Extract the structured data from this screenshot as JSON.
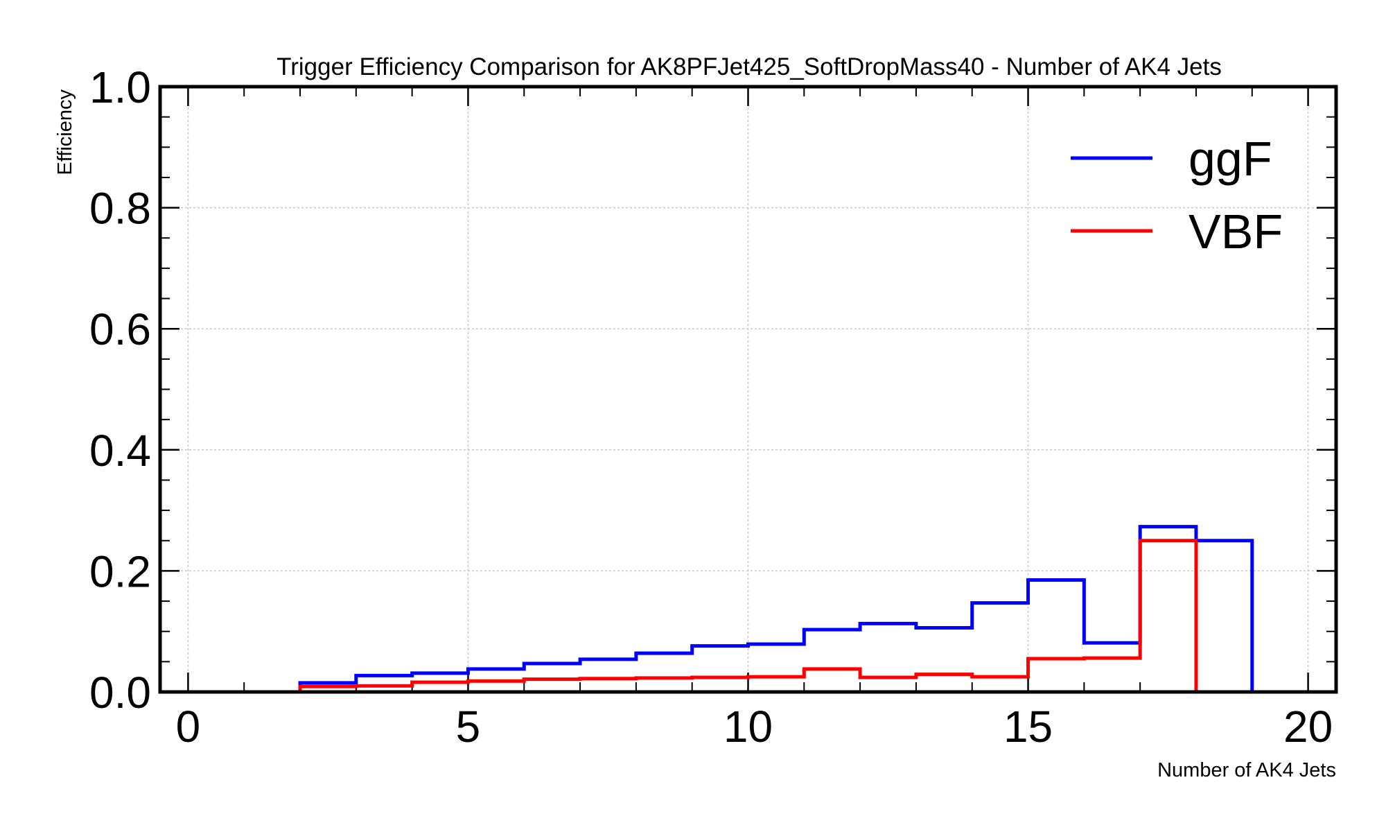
{
  "chart_data": {
    "type": "step",
    "title": "Trigger Efficiency Comparison for AK8PFJet425_SoftDropMass40 - Number of AK4 Jets",
    "xlabel": "Number of AK4 Jets",
    "ylabel": "Efficiency",
    "xlim": [
      -0.5,
      20.5
    ],
    "ylim": [
      0.0,
      1.0
    ],
    "xticks": [
      0,
      5,
      10,
      15,
      20
    ],
    "xtick_labels": [
      "0",
      "5",
      "10",
      "15",
      "20"
    ],
    "yticks": [
      0.0,
      0.2,
      0.4,
      0.6,
      0.8,
      1.0
    ],
    "ytick_labels": [
      "0.0",
      "0.2",
      "0.4",
      "0.6",
      "0.8",
      "1.0"
    ],
    "grid": true,
    "legend_position": "top-right",
    "bin_edges": [
      0,
      1,
      2,
      3,
      4,
      5,
      6,
      7,
      8,
      9,
      10,
      11,
      12,
      13,
      14,
      15,
      16,
      17,
      18,
      19,
      20
    ],
    "series": [
      {
        "name": "ggF",
        "color": "#0000ff",
        "values": [
          0,
          0,
          0.015,
          0.027,
          0.031,
          0.038,
          0.047,
          0.054,
          0.064,
          0.076,
          0.079,
          0.103,
          0.113,
          0.106,
          0.147,
          0.185,
          0.081,
          0.273,
          0.25,
          0
        ]
      },
      {
        "name": "VBF",
        "color": "#ff0000",
        "values": [
          0,
          0,
          0.009,
          0.01,
          0.016,
          0.018,
          0.021,
          0.022,
          0.023,
          0.024,
          0.025,
          0.038,
          0.024,
          0.029,
          0.025,
          0.055,
          0.056,
          0.25,
          0,
          0
        ]
      }
    ]
  }
}
